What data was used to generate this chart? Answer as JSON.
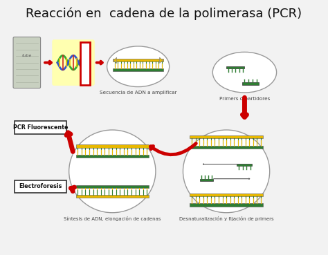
{
  "title": "Reacción en  cadena de la polimerasa (PCR)",
  "title_fontsize": 13,
  "background_color": "#f2f2f2",
  "fig_bg": "#f2f2f2",
  "labels": {
    "seq_adn": "Secuencia de ADN a amplificar",
    "primers": "Primers o partidores",
    "sintesis": "Síntesis de ADN, elongación de cadenas",
    "desnaturalizacion": "Desnaturalización y fijación de primers",
    "pcr_fluorescente": "PCR Fluorescente",
    "electroforesis": "Electroforesis"
  },
  "colors": {
    "yellow_band": "#e8b800",
    "green_comb": "#2e7d32",
    "red_arrow": "#cc0000",
    "box_border": "#cc0000",
    "circle_edge": "#999999",
    "dna_yellow": "#e8c000",
    "dna_green": "#33aa33",
    "dna_blue": "#3355cc",
    "dna_red": "#cc2222",
    "text_color": "#111111",
    "label_border": "#333333",
    "bg_highlight": "#ffffc0"
  }
}
